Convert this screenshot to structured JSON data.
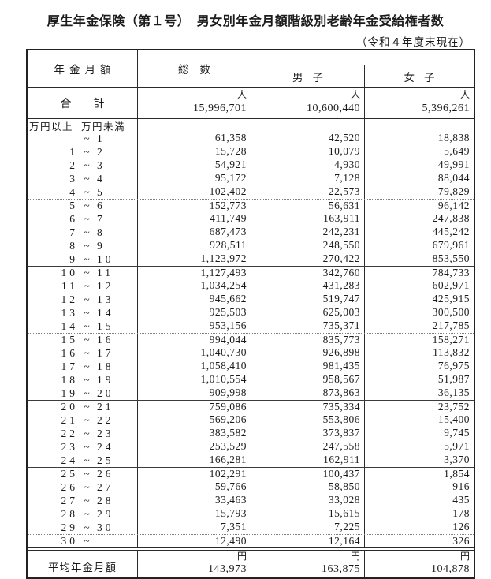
{
  "title": "厚生年金保険（第１号）　男女別年金月額階級別老齢年金受給権者数",
  "subtitle": "（令和４年度末現在）",
  "table": {
    "headers": {
      "amount": "年金月額",
      "total": "総数",
      "male": "男子",
      "female": "女子"
    },
    "unit_person": "人",
    "unit_yen": "円",
    "tilde": "~",
    "range_header": {
      "lower": "万円以上",
      "upper": "万円未満"
    },
    "total_row": {
      "label": "合計",
      "total": "15,996,701",
      "male": "10,600,440",
      "female": "5,396,261"
    },
    "rows": [
      {
        "lo": "",
        "hi": "1",
        "total": "61,358",
        "male": "42,520",
        "female": "18,838",
        "sep": "none"
      },
      {
        "lo": "1",
        "hi": "2",
        "total": "15,728",
        "male": "10,079",
        "female": "5,649",
        "sep": "none"
      },
      {
        "lo": "2",
        "hi": "3",
        "total": "54,921",
        "male": "4,930",
        "female": "49,991",
        "sep": "none"
      },
      {
        "lo": "3",
        "hi": "4",
        "total": "95,172",
        "male": "7,128",
        "female": "88,044",
        "sep": "none"
      },
      {
        "lo": "4",
        "hi": "5",
        "total": "102,402",
        "male": "22,573",
        "female": "79,829",
        "sep": "none"
      },
      {
        "lo": "5",
        "hi": "6",
        "total": "152,773",
        "male": "56,631",
        "female": "96,142",
        "sep": "dotted"
      },
      {
        "lo": "6",
        "hi": "7",
        "total": "411,749",
        "male": "163,911",
        "female": "247,838",
        "sep": "none"
      },
      {
        "lo": "7",
        "hi": "8",
        "total": "687,473",
        "male": "242,231",
        "female": "445,242",
        "sep": "none"
      },
      {
        "lo": "8",
        "hi": "9",
        "total": "928,511",
        "male": "248,550",
        "female": "679,961",
        "sep": "none"
      },
      {
        "lo": "9",
        "hi": "10",
        "total": "1,123,972",
        "male": "270,422",
        "female": "853,550",
        "sep": "none"
      },
      {
        "lo": "10",
        "hi": "11",
        "total": "1,127,493",
        "male": "342,760",
        "female": "784,733",
        "sep": "solid"
      },
      {
        "lo": "11",
        "hi": "12",
        "total": "1,034,254",
        "male": "431,283",
        "female": "602,971",
        "sep": "none"
      },
      {
        "lo": "12",
        "hi": "13",
        "total": "945,662",
        "male": "519,747",
        "female": "425,915",
        "sep": "none"
      },
      {
        "lo": "13",
        "hi": "14",
        "total": "925,503",
        "male": "625,003",
        "female": "300,500",
        "sep": "none"
      },
      {
        "lo": "14",
        "hi": "15",
        "total": "953,156",
        "male": "735,371",
        "female": "217,785",
        "sep": "none"
      },
      {
        "lo": "15",
        "hi": "16",
        "total": "994,044",
        "male": "835,773",
        "female": "158,271",
        "sep": "dotted"
      },
      {
        "lo": "16",
        "hi": "17",
        "total": "1,040,730",
        "male": "926,898",
        "female": "113,832",
        "sep": "none"
      },
      {
        "lo": "17",
        "hi": "18",
        "total": "1,058,410",
        "male": "981,435",
        "female": "76,975",
        "sep": "none"
      },
      {
        "lo": "18",
        "hi": "19",
        "total": "1,010,554",
        "male": "958,567",
        "female": "51,987",
        "sep": "none"
      },
      {
        "lo": "19",
        "hi": "20",
        "total": "909,998",
        "male": "873,863",
        "female": "36,135",
        "sep": "none"
      },
      {
        "lo": "20",
        "hi": "21",
        "total": "759,086",
        "male": "735,334",
        "female": "23,752",
        "sep": "solid"
      },
      {
        "lo": "21",
        "hi": "22",
        "total": "569,206",
        "male": "553,806",
        "female": "15,400",
        "sep": "none"
      },
      {
        "lo": "22",
        "hi": "23",
        "total": "383,582",
        "male": "373,837",
        "female": "9,745",
        "sep": "none"
      },
      {
        "lo": "23",
        "hi": "24",
        "total": "253,529",
        "male": "247,558",
        "female": "5,971",
        "sep": "none"
      },
      {
        "lo": "24",
        "hi": "25",
        "total": "166,281",
        "male": "162,911",
        "female": "3,370",
        "sep": "none"
      },
      {
        "lo": "25",
        "hi": "26",
        "total": "102,291",
        "male": "100,437",
        "female": "1,854",
        "sep": "solid"
      },
      {
        "lo": "26",
        "hi": "27",
        "total": "59,766",
        "male": "58,850",
        "female": "916",
        "sep": "none"
      },
      {
        "lo": "27",
        "hi": "28",
        "total": "33,463",
        "male": "33,028",
        "female": "435",
        "sep": "none"
      },
      {
        "lo": "28",
        "hi": "29",
        "total": "15,793",
        "male": "15,615",
        "female": "178",
        "sep": "none"
      },
      {
        "lo": "29",
        "hi": "30",
        "total": "7,351",
        "male": "7,225",
        "female": "126",
        "sep": "none"
      },
      {
        "lo": "30",
        "hi": "",
        "total": "12,490",
        "male": "12,164",
        "female": "326",
        "sep": "dotted"
      }
    ],
    "avg_row": {
      "label": "平均年金月額",
      "total": "143,973",
      "male": "163,875",
      "female": "104,878"
    }
  }
}
